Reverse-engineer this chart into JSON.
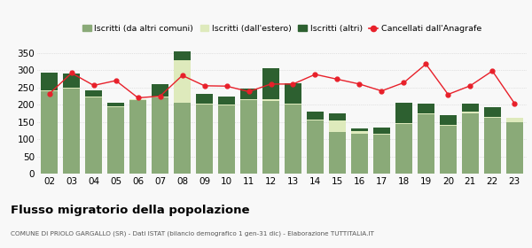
{
  "years": [
    "02",
    "03",
    "04",
    "05",
    "06",
    "07",
    "08",
    "09",
    "10",
    "11",
    "12",
    "13",
    "14",
    "15",
    "16",
    "17",
    "18",
    "19",
    "20",
    "21",
    "22",
    "23"
  ],
  "iscritti_altri_comuni": [
    238,
    248,
    220,
    192,
    214,
    220,
    205,
    200,
    197,
    213,
    212,
    200,
    155,
    120,
    115,
    113,
    143,
    172,
    138,
    175,
    161,
    149
  ],
  "iscritti_estero": [
    5,
    2,
    4,
    3,
    3,
    3,
    125,
    4,
    4,
    4,
    4,
    4,
    3,
    35,
    8,
    3,
    4,
    3,
    4,
    4,
    3,
    13
  ],
  "iscritti_altri": [
    50,
    40,
    18,
    10,
    0,
    36,
    26,
    28,
    22,
    30,
    90,
    57,
    22,
    20,
    8,
    17,
    58,
    28,
    27,
    23,
    30,
    0
  ],
  "cancellati": [
    232,
    292,
    256,
    270,
    220,
    225,
    285,
    255,
    254,
    238,
    260,
    260,
    288,
    274,
    260,
    240,
    264,
    318,
    230,
    255,
    298,
    204
  ],
  "color_altri_comuni": "#8aaa78",
  "color_estero": "#deeabc",
  "color_altri": "#2d6030",
  "color_cancellati": "#e8202a",
  "legend_labels": [
    "Iscritti (da altri comuni)",
    "Iscritti (dall'estero)",
    "Iscritti (altri)",
    "Cancellati dall'Anagrafe"
  ],
  "title": "Flusso migratorio della popolazione",
  "subtitle": "COMUNE DI PRIOLO GARGALLO (SR) - Dati ISTAT (bilancio demografico 1 gen-31 dic) - Elaborazione TUTTITALIA.IT",
  "ylim": [
    0,
    360
  ],
  "yticks": [
    0,
    50,
    100,
    150,
    200,
    250,
    300,
    350
  ],
  "bg_color": "#f8f8f8",
  "grid_color": "#cccccc"
}
